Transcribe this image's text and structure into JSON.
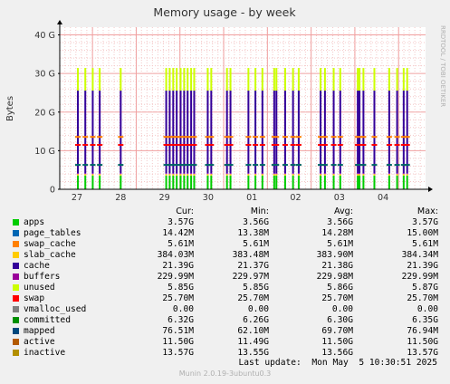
{
  "chart_data": {
    "type": "bar",
    "title": "Memory usage - by week",
    "ylabel": "Bytes",
    "ylim": [
      0,
      42
    ],
    "y_unit": "G",
    "yticks": [
      {
        "value": 0,
        "label": "0"
      },
      {
        "value": 10,
        "label": "10 G"
      },
      {
        "value": 20,
        "label": "20 G"
      },
      {
        "value": 30,
        "label": "30 G"
      },
      {
        "value": 40,
        "label": "40 G"
      }
    ],
    "xticks": [
      "27",
      "28",
      "29",
      "30",
      "01",
      "02",
      "03",
      "04"
    ],
    "side_label": "RRDTOOL / TOBI OETIKER",
    "grid": true,
    "series_colors": {
      "apps": "#00cc00",
      "buffers": "#8f00c7",
      "cache": "#330099",
      "unused": "#ccff00",
      "swap": "#ff0000",
      "committed": "#00aa00",
      "mapped": "#006666",
      "active": "#0066b3",
      "inactive": "#cc9900",
      "slab_cache": "#ffcc00",
      "swap_cache": "#ff8000"
    },
    "levels": {
      "apps": 3.57,
      "slab_cache": 3.95,
      "buffers": 4.18,
      "cache": 25.57,
      "unused": 31.42,
      "committed": 6.32,
      "active": 11.5,
      "inactive": 13.57
    },
    "spikes": [
      {
        "day": 0.0
      },
      {
        "day": 0.17
      },
      {
        "day": 0.34
      },
      {
        "day": 0.5
      },
      {
        "day": 0.98
      },
      {
        "day": 2.02
      },
      {
        "day": 2.1
      },
      {
        "day": 2.18
      },
      {
        "day": 2.26
      },
      {
        "day": 2.35
      },
      {
        "day": 2.43
      },
      {
        "day": 2.51
      },
      {
        "day": 2.59
      },
      {
        "day": 2.66
      },
      {
        "day": 2.97
      },
      {
        "day": 3.05
      },
      {
        "day": 3.41
      },
      {
        "day": 3.49
      },
      {
        "day": 3.9
      },
      {
        "day": 4.06
      },
      {
        "day": 4.22
      },
      {
        "day": 4.49
      },
      {
        "day": 4.54
      },
      {
        "day": 4.74
      },
      {
        "day": 4.92
      },
      {
        "day": 5.05
      },
      {
        "day": 5.55
      },
      {
        "day": 5.65
      },
      {
        "day": 5.85
      },
      {
        "day": 6.0
      },
      {
        "day": 6.4
      },
      {
        "day": 6.44
      },
      {
        "day": 6.53
      },
      {
        "day": 6.78
      },
      {
        "day": 7.12
      },
      {
        "day": 7.3
      },
      {
        "day": 7.45
      },
      {
        "day": 7.53
      }
    ]
  },
  "legend": {
    "headers": {
      "cur": "Cur:",
      "min": "Min:",
      "avg": "Avg:",
      "max": "Max:"
    },
    "rows": [
      {
        "name": "apps",
        "color": "#00cc00",
        "cur": "3.57G",
        "min": "3.56G",
        "avg": "3.56G",
        "max": "3.57G"
      },
      {
        "name": "page_tables",
        "color": "#0066b3",
        "cur": "14.42M",
        "min": "13.38M",
        "avg": "14.28M",
        "max": "15.00M"
      },
      {
        "name": "swap_cache",
        "color": "#ff8000",
        "cur": "5.61M",
        "min": "5.61M",
        "avg": "5.61M",
        "max": "5.61M"
      },
      {
        "name": "slab_cache",
        "color": "#ffcc00",
        "cur": "384.03M",
        "min": "383.48M",
        "avg": "383.90M",
        "max": "384.34M"
      },
      {
        "name": "cache",
        "color": "#330099",
        "cur": "21.39G",
        "min": "21.37G",
        "avg": "21.38G",
        "max": "21.39G"
      },
      {
        "name": "buffers",
        "color": "#990099",
        "cur": "229.99M",
        "min": "229.97M",
        "avg": "229.98M",
        "max": "229.99M"
      },
      {
        "name": "unused",
        "color": "#ccff00",
        "cur": "5.85G",
        "min": "5.85G",
        "avg": "5.86G",
        "max": "5.87G"
      },
      {
        "name": "swap",
        "color": "#ff0000",
        "cur": "25.70M",
        "min": "25.70M",
        "avg": "25.70M",
        "max": "25.70M"
      },
      {
        "name": "vmalloc_used",
        "color": "#808080",
        "cur": "0.00",
        "min": "0.00",
        "avg": "0.00",
        "max": "0.00"
      },
      {
        "name": "committed",
        "color": "#008f00",
        "cur": "6.32G",
        "min": "6.26G",
        "avg": "6.30G",
        "max": "6.35G"
      },
      {
        "name": "mapped",
        "color": "#00487d",
        "cur": "76.51M",
        "min": "62.10M",
        "avg": "69.70M",
        "max": "76.94M"
      },
      {
        "name": "active",
        "color": "#b35a00",
        "cur": "11.50G",
        "min": "11.49G",
        "avg": "11.50G",
        "max": "11.50G"
      },
      {
        "name": "inactive",
        "color": "#b38f00",
        "cur": "13.57G",
        "min": "13.55G",
        "avg": "13.56G",
        "max": "13.57G"
      }
    ]
  },
  "last_update": "Last update:  Mon May  5 10:30:51 2025",
  "footer": "Munin 2.0.19-3ubuntu0.3"
}
